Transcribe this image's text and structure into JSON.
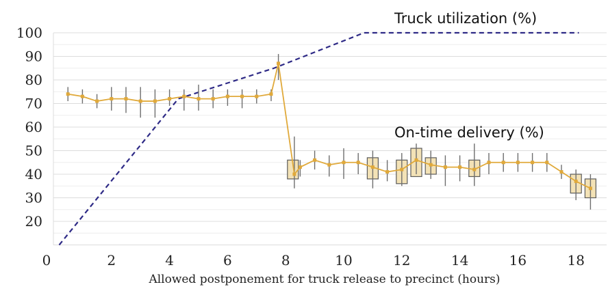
{
  "chart_data": {
    "type": "line",
    "title": "",
    "xlabel": "Allowed postponement  for truck release to precinct (hours)",
    "ylabel": "",
    "xlim": [
      0,
      18.6
    ],
    "ylim": [
      10,
      100
    ],
    "grid": true,
    "x_ticks": [
      0,
      2,
      4,
      6,
      8,
      10,
      12,
      14,
      16,
      18
    ],
    "y_ticks": [
      20,
      30,
      40,
      50,
      60,
      70,
      80,
      90,
      100
    ],
    "annotations": [
      {
        "text": "Truck utilization  (%)",
        "series": "Truck utilization"
      },
      {
        "text": "On-time delivery  (%)",
        "series": "On-time delivery"
      }
    ],
    "series": [
      {
        "name": "Truck utilization",
        "color": "#2e2a86",
        "style": "dashed",
        "points": [
          [
            0.2,
            10
          ],
          [
            4.3,
            72
          ],
          [
            7.6,
            85
          ],
          [
            10.7,
            100
          ],
          [
            18.1,
            100
          ]
        ]
      },
      {
        "name": "On-time delivery",
        "color": "#e0a93a",
        "style": "solid",
        "points": [
          [
            0.5,
            74
          ],
          [
            1.0,
            73
          ],
          [
            1.5,
            71
          ],
          [
            2.0,
            72
          ],
          [
            2.5,
            72
          ],
          [
            3.0,
            71
          ],
          [
            3.5,
            71
          ],
          [
            4.0,
            72
          ],
          [
            4.5,
            73
          ],
          [
            5.0,
            72
          ],
          [
            5.5,
            72
          ],
          [
            6.0,
            73
          ],
          [
            6.5,
            73
          ],
          [
            7.0,
            73
          ],
          [
            7.5,
            74
          ],
          [
            7.75,
            87
          ],
          [
            8.3,
            40
          ],
          [
            8.5,
            43
          ],
          [
            9.0,
            46
          ],
          [
            9.5,
            44
          ],
          [
            10.0,
            45
          ],
          [
            10.5,
            45
          ],
          [
            11.0,
            43
          ],
          [
            11.5,
            41
          ],
          [
            12.0,
            42
          ],
          [
            12.5,
            46
          ],
          [
            13.0,
            44
          ],
          [
            13.5,
            43
          ],
          [
            14.0,
            43
          ],
          [
            14.5,
            42
          ],
          [
            15.0,
            45
          ],
          [
            15.5,
            45
          ],
          [
            16.0,
            45
          ],
          [
            16.5,
            45
          ],
          [
            17.0,
            45
          ],
          [
            17.5,
            41
          ],
          [
            18.0,
            37
          ],
          [
            18.5,
            34
          ]
        ],
        "whiskers": [
          [
            0.5,
            71,
            77
          ],
          [
            1.0,
            70,
            76
          ],
          [
            1.5,
            68,
            74
          ],
          [
            2.0,
            67,
            77
          ],
          [
            2.5,
            66,
            77
          ],
          [
            3.0,
            64,
            77
          ],
          [
            3.5,
            64,
            76
          ],
          [
            4.0,
            69,
            76
          ],
          [
            4.5,
            67,
            76
          ],
          [
            5.0,
            67,
            78
          ],
          [
            5.5,
            68,
            76
          ],
          [
            6.0,
            69,
            76
          ],
          [
            6.5,
            68,
            76
          ],
          [
            7.0,
            70,
            76
          ],
          [
            7.5,
            71,
            76
          ],
          [
            7.75,
            80,
            91
          ],
          [
            8.3,
            34,
            56
          ],
          [
            8.5,
            39,
            46
          ],
          [
            9.0,
            42,
            50
          ],
          [
            9.5,
            39,
            48
          ],
          [
            10.0,
            38,
            51
          ],
          [
            10.5,
            40,
            49
          ],
          [
            11.0,
            34,
            50
          ],
          [
            11.5,
            37,
            46
          ],
          [
            12.0,
            35,
            49
          ],
          [
            12.5,
            40,
            53
          ],
          [
            13.0,
            38,
            50
          ],
          [
            13.5,
            35,
            48
          ],
          [
            14.0,
            37,
            48
          ],
          [
            14.5,
            35,
            53
          ],
          [
            15.0,
            40,
            49
          ],
          [
            15.5,
            41,
            49
          ],
          [
            16.0,
            41,
            49
          ],
          [
            16.5,
            41,
            49
          ],
          [
            17.0,
            41,
            49
          ],
          [
            17.5,
            38,
            44
          ],
          [
            18.0,
            29,
            42
          ],
          [
            18.5,
            25,
            40
          ]
        ],
        "boxes": [
          [
            8.25,
            38,
            46
          ],
          [
            11.0,
            38,
            47
          ],
          [
            12.0,
            36,
            46
          ],
          [
            12.5,
            39,
            51
          ],
          [
            13.0,
            40,
            47
          ],
          [
            14.5,
            39,
            46
          ],
          [
            18.0,
            32,
            40
          ],
          [
            18.5,
            30,
            38
          ]
        ]
      }
    ]
  }
}
